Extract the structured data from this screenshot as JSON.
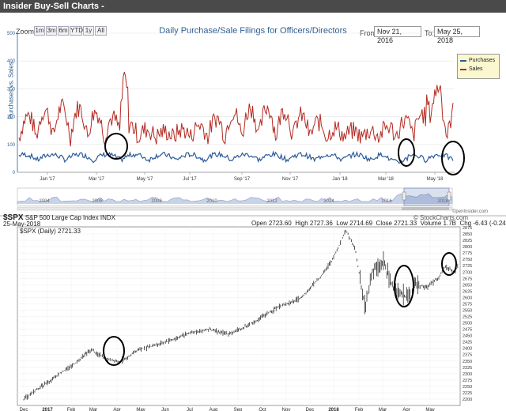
{
  "window": {
    "title": "Insider Buy-Sell Charts -"
  },
  "filings_chart": {
    "title": "Daily Purchase/Sale Filings for Officers/Directors",
    "zoom_label": "Zoom",
    "zoom_buttons": [
      "1m",
      "3m",
      "6m",
      "YTD",
      "1y",
      "All"
    ],
    "from_label": "From:",
    "from_value": "Nov 21, 2016",
    "to_label": "To:",
    "to_value": "May 25, 2018",
    "ylabel": "Purchases vs. Sales",
    "yticks": [
      "0",
      "100",
      "200",
      "300",
      "400",
      "500"
    ],
    "xticks": [
      "Jan '17",
      "Mar '17",
      "May '17",
      "Jul '17",
      "Sep '17",
      "Nov '17",
      "Jan '18",
      "Mar '18",
      "May '18"
    ],
    "navigator_years": [
      "2004",
      "2006",
      "2008",
      "2010",
      "2012",
      "2014",
      "2016",
      "2018"
    ],
    "credit": "©penInsider.com",
    "legend": [
      {
        "name": "Purchases",
        "color": "#2b5b9b"
      },
      {
        "name": "Sales",
        "color": "#b42a22"
      }
    ],
    "colors": {
      "purchases": "#2b5b9b",
      "sales": "#b42a22",
      "grid": "#d8d8d8"
    }
  },
  "stock_chart": {
    "symbol": "$SPX",
    "name": "S&P 500 Large Cap Index",
    "exchange": "INDX",
    "date": "25-May-2018",
    "series_label": "$SPX (Daily) 2721.33",
    "credit": "© StockCharts.com",
    "ohlc": [
      {
        "label": "Open",
        "value": "2723.60"
      },
      {
        "label": "High",
        "value": "2727.36"
      },
      {
        "label": "Low",
        "value": "2714.69"
      },
      {
        "label": "Close",
        "value": "2721.33"
      },
      {
        "label": "Volume",
        "value": "1.7B"
      },
      {
        "label": "Chg",
        "value": "-6.43 (-0.24%)"
      }
    ],
    "yticks": [
      "2875",
      "2850",
      "2825",
      "2800",
      "2775",
      "2750",
      "2725",
      "2700",
      "2675",
      "2650",
      "2625",
      "2600",
      "2575",
      "2550",
      "2525",
      "2500",
      "2475",
      "2450",
      "2425",
      "2400",
      "2375",
      "2350",
      "2325",
      "2300",
      "2275",
      "2250",
      "2225",
      "2200"
    ],
    "xticks": [
      "Dec",
      "2017",
      "Feb",
      "Mar",
      "Apr",
      "May",
      "Jun",
      "Jul",
      "Aug",
      "Sep",
      "Oct",
      "Nov",
      "Dec",
      "2018",
      "Feb",
      "Mar",
      "Apr",
      "May"
    ]
  }
}
